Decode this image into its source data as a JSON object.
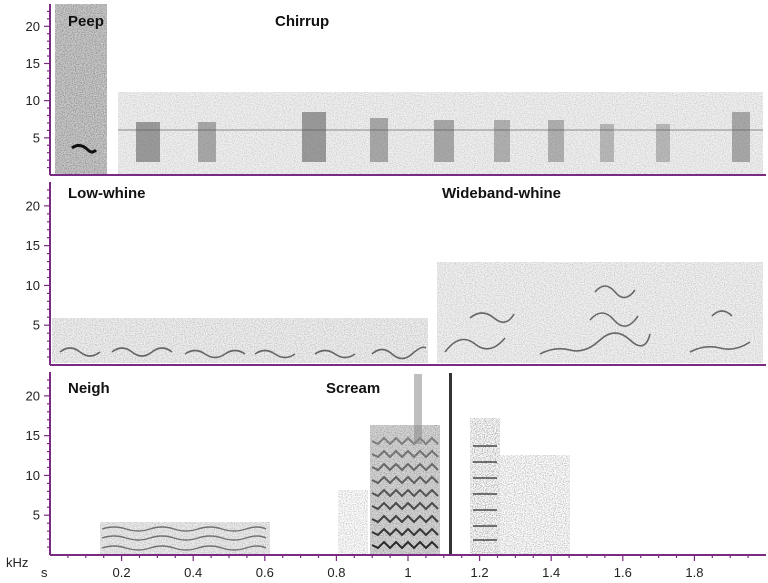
{
  "figure": {
    "colors": {
      "axis": "#7a2a80",
      "ink": "#2b2b2b",
      "background": "#ffffff",
      "label": "#111111"
    },
    "y_unit": "kHz",
    "x_unit": "s",
    "y_ticks": [
      {
        "value": 5,
        "label": "5"
      },
      {
        "value": 10,
        "label": "10"
      },
      {
        "value": 15,
        "label": "15"
      },
      {
        "value": 20,
        "label": "20"
      }
    ],
    "x_ticks": [
      {
        "value": 0.2,
        "label": "0.2"
      },
      {
        "value": 0.4,
        "label": "0.4"
      },
      {
        "value": 0.6,
        "label": "0.6"
      },
      {
        "value": 0.8,
        "label": "0.8"
      },
      {
        "value": 1.0,
        "label": "1"
      },
      {
        "value": 1.2,
        "label": "1.2"
      },
      {
        "value": 1.4,
        "label": "1.4"
      },
      {
        "value": 1.6,
        "label": "1.6"
      },
      {
        "value": 1.8,
        "label": "1.8"
      }
    ],
    "x_range": [
      0,
      2.0
    ],
    "y_range": [
      0,
      23
    ],
    "panels": [
      {
        "id": "top",
        "labels": [
          {
            "text": "Peep",
            "time": 0.06
          },
          {
            "text": "Chirrup",
            "time": 0.82
          }
        ]
      },
      {
        "id": "middle",
        "labels": [
          {
            "text": "Low-whine",
            "time": 0.06
          },
          {
            "text": "Wideband-whine",
            "time": 1.1
          }
        ]
      },
      {
        "id": "bottom",
        "labels": [
          {
            "text": "Neigh",
            "time": 0.06
          },
          {
            "text": "Scream",
            "time": 0.8
          }
        ]
      }
    ]
  }
}
